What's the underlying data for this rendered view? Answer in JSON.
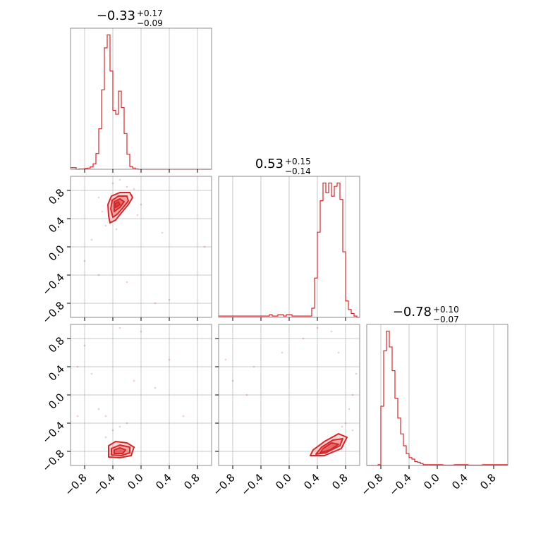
{
  "colors": {
    "series": "#d62728",
    "grid": "#c8c8c8",
    "frame": "#8c8c8c"
  },
  "chart_data": {
    "type": "corner",
    "parameters": 3,
    "range": [
      -1.0,
      1.0
    ],
    "ticks": [
      -0.8,
      -0.4,
      0.0,
      0.4,
      0.8
    ],
    "tick_labels": [
      "−0.8",
      "−0.4",
      "0.0",
      "0.4",
      "0.8"
    ],
    "grid": true,
    "titles": [
      {
        "median": "−0.33",
        "plus": "+0.17",
        "minus": "−0.09"
      },
      {
        "median": "0.53",
        "plus": "+0.15",
        "minus": "−0.14"
      },
      {
        "median": "−0.78",
        "plus": "+0.10",
        "minus": "−0.07"
      }
    ],
    "histograms": [
      {
        "param": 0,
        "bin_edges_start": -1.0,
        "bin_width": 0.04,
        "counts": [
          4,
          4,
          0,
          1,
          1,
          2,
          3,
          6,
          14,
          40,
          103,
          202,
          309,
          342,
          250,
          150,
          140,
          199,
          157,
          91,
          38,
          7,
          3,
          1,
          0,
          0,
          0,
          0,
          0,
          0,
          0,
          0,
          0,
          0,
          0,
          0,
          0,
          0,
          0,
          0,
          0,
          0,
          0,
          0,
          0,
          0,
          0,
          0,
          0,
          0
        ]
      },
      {
        "param": 1,
        "bin_edges_start": -1.0,
        "bin_width": 0.04,
        "counts": [
          2,
          2,
          2,
          2,
          2,
          2,
          2,
          2,
          2,
          2,
          2,
          2,
          2,
          2,
          2,
          2,
          2,
          2,
          4,
          2,
          2,
          4,
          4,
          2,
          4,
          4,
          2,
          2,
          2,
          2,
          2,
          2,
          2,
          14,
          60,
          130,
          178,
          205,
          190,
          205,
          185,
          200,
          205,
          180,
          100,
          25,
          12,
          6,
          2,
          0
        ]
      },
      {
        "param": 2,
        "bin_edges_start": -1.0,
        "bin_width": 0.04,
        "counts": [
          0,
          0,
          0,
          0,
          2,
          150,
          290,
          340,
          300,
          240,
          170,
          120,
          80,
          50,
          30,
          20,
          16,
          10,
          8,
          5,
          2,
          2,
          2,
          2,
          2,
          2,
          2,
          1,
          1,
          1,
          1,
          2,
          2,
          2,
          2,
          2,
          1,
          1,
          1,
          1,
          1,
          2,
          2,
          2,
          2,
          2,
          2,
          2,
          2,
          2
        ]
      }
    ],
    "density_2d": [
      {
        "x_param": 0,
        "y_param": 1,
        "contours": [
          [
            [
              -0.44,
              0.34
            ],
            [
              -0.36,
              0.38
            ],
            [
              -0.28,
              0.48
            ],
            [
              -0.18,
              0.6
            ],
            [
              -0.12,
              0.7
            ],
            [
              -0.16,
              0.77
            ],
            [
              -0.3,
              0.77
            ],
            [
              -0.42,
              0.72
            ],
            [
              -0.47,
              0.6
            ],
            [
              -0.46,
              0.44
            ]
          ],
          [
            [
              -0.4,
              0.42
            ],
            [
              -0.34,
              0.46
            ],
            [
              -0.26,
              0.55
            ],
            [
              -0.18,
              0.65
            ],
            [
              -0.2,
              0.72
            ],
            [
              -0.32,
              0.72
            ],
            [
              -0.41,
              0.66
            ],
            [
              -0.43,
              0.54
            ]
          ],
          [
            [
              -0.38,
              0.5
            ],
            [
              -0.3,
              0.56
            ],
            [
              -0.24,
              0.64
            ],
            [
              -0.3,
              0.68
            ],
            [
              -0.38,
              0.64
            ]
          ],
          [
            [
              -0.36,
              0.56
            ],
            [
              -0.3,
              0.6
            ],
            [
              -0.32,
              0.64
            ],
            [
              -0.37,
              0.61
            ]
          ]
        ],
        "points": [
          [
            -0.4,
            0.9
          ],
          [
            -0.2,
            0.85
          ],
          [
            -0.3,
            0.95
          ],
          [
            -0.1,
            0.82
          ],
          [
            -0.55,
            0.5
          ],
          [
            -0.6,
            0.7
          ],
          [
            -0.5,
            0.3
          ],
          [
            -0.7,
            0.1
          ],
          [
            -0.8,
            -0.2
          ],
          [
            -0.2,
            -0.5
          ],
          [
            0.2,
            -0.8
          ],
          [
            0.9,
            0.0
          ],
          [
            -0.6,
            -0.4
          ],
          [
            0.3,
            0.2
          ],
          [
            -0.35,
            0.25
          ],
          [
            0.0,
            0.6
          ],
          [
            -0.05,
            0.45
          ],
          [
            0.4,
            -0.75
          ]
        ]
      },
      {
        "x_param": 0,
        "y_param": 2,
        "contours": [
          [
            [
              -0.46,
              -0.88
            ],
            [
              -0.3,
              -0.89
            ],
            [
              -0.14,
              -0.86
            ],
            [
              -0.1,
              -0.74
            ],
            [
              -0.2,
              -0.68
            ],
            [
              -0.36,
              -0.66
            ],
            [
              -0.46,
              -0.72
            ]
          ],
          [
            [
              -0.42,
              -0.85
            ],
            [
              -0.28,
              -0.86
            ],
            [
              -0.16,
              -0.82
            ],
            [
              -0.16,
              -0.74
            ],
            [
              -0.3,
              -0.71
            ],
            [
              -0.42,
              -0.76
            ]
          ],
          [
            [
              -0.38,
              -0.83
            ],
            [
              -0.26,
              -0.83
            ],
            [
              -0.22,
              -0.78
            ],
            [
              -0.3,
              -0.75
            ],
            [
              -0.38,
              -0.78
            ]
          ]
        ],
        "points": [
          [
            -0.4,
            -0.5
          ],
          [
            -0.3,
            -0.45
          ],
          [
            -0.5,
            -0.6
          ],
          [
            -0.2,
            -0.4
          ],
          [
            -0.6,
            -0.2
          ],
          [
            -0.7,
            0.3
          ],
          [
            -0.8,
            0.7
          ],
          [
            -0.9,
            0.4
          ],
          [
            -0.3,
            0.95
          ],
          [
            0.0,
            0.9
          ],
          [
            0.4,
            0.5
          ],
          [
            0.2,
            0.1
          ],
          [
            -0.1,
            0.2
          ],
          [
            0.6,
            -0.3
          ],
          [
            -0.9,
            -0.3
          ],
          [
            -0.5,
            -0.3
          ]
        ]
      },
      {
        "x_param": 1,
        "y_param": 2,
        "contours": [
          [
            [
              0.3,
              -0.86
            ],
            [
              0.5,
              -0.86
            ],
            [
              0.74,
              -0.76
            ],
            [
              0.82,
              -0.6
            ],
            [
              0.7,
              -0.55
            ],
            [
              0.5,
              -0.66
            ],
            [
              0.34,
              -0.78
            ]
          ],
          [
            [
              0.38,
              -0.84
            ],
            [
              0.52,
              -0.82
            ],
            [
              0.72,
              -0.72
            ],
            [
              0.76,
              -0.62
            ],
            [
              0.62,
              -0.64
            ],
            [
              0.46,
              -0.74
            ]
          ],
          [
            [
              0.44,
              -0.82
            ],
            [
              0.58,
              -0.78
            ],
            [
              0.7,
              -0.7
            ],
            [
              0.6,
              -0.68
            ],
            [
              0.48,
              -0.76
            ]
          ]
        ],
        "points": [
          [
            0.8,
            -0.4
          ],
          [
            0.85,
            -0.2
          ],
          [
            0.9,
            0.0
          ],
          [
            0.95,
            0.3
          ],
          [
            0.7,
            0.6
          ],
          [
            0.6,
            0.9
          ],
          [
            0.4,
            0.95
          ],
          [
            0.2,
            0.8
          ],
          [
            -0.1,
            0.6
          ],
          [
            -0.5,
            0.4
          ],
          [
            -0.8,
            0.2
          ],
          [
            -0.9,
            0.5
          ],
          [
            0.9,
            -0.5
          ],
          [
            0.75,
            -0.45
          ],
          [
            -0.6,
            0.0
          ]
        ]
      }
    ]
  }
}
